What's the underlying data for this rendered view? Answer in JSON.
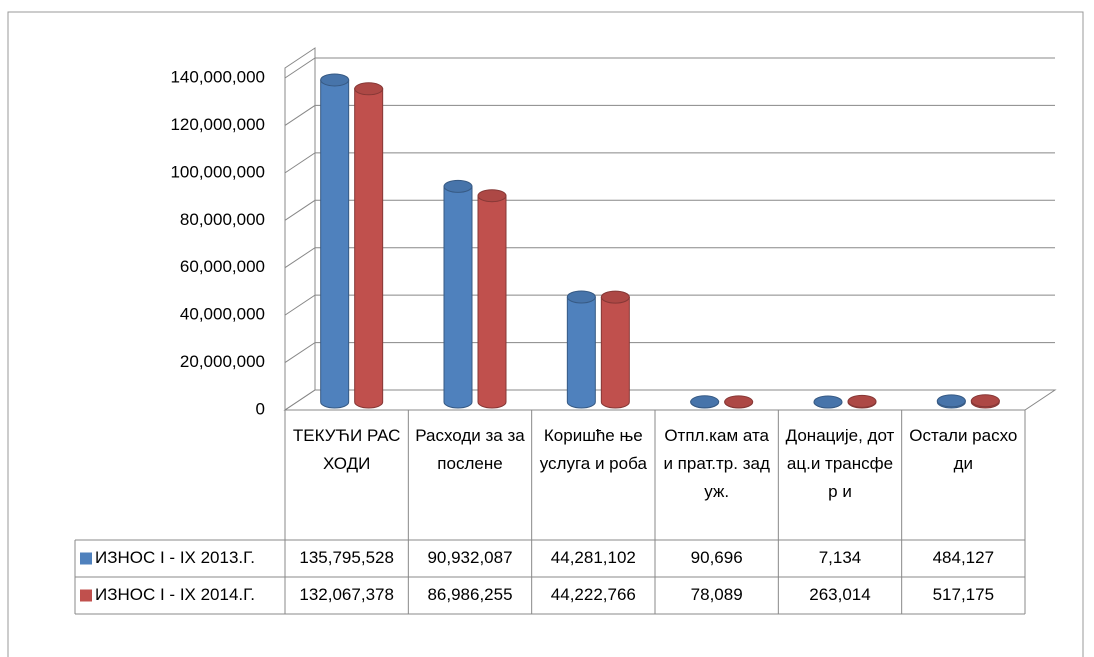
{
  "chart_data": {
    "type": "bar3d",
    "categories": [
      "ТЕКУЋИ РАСХОДИ",
      "Расходи за запослене",
      "Коришће ње услуга и роба",
      "Отпл.кам ата и прат.тр. задуж.",
      "Донације, дотац.и трансфер и",
      "Остали расходи"
    ],
    "series": [
      {
        "name": "ИЗНОС I - IX  2013.Г.",
        "color": "#4f81bd",
        "values": [
          135795528,
          90932087,
          44281102,
          90696,
          7134,
          484127
        ],
        "value_labels": [
          "135,795,528",
          "90,932,087",
          "44,281,102",
          "90,696",
          "7,134",
          "484,127"
        ]
      },
      {
        "name": "ИЗНОС I - IX  2014.Г.",
        "color": "#c0504d",
        "values": [
          132067378,
          86986255,
          44222766,
          78089,
          263014,
          517175
        ],
        "value_labels": [
          "132,067,378",
          "86,986,255",
          "44,222,766",
          "78,089",
          "263,014",
          "517,175"
        ]
      }
    ],
    "ylim": [
      0,
      140000000
    ],
    "yticks": [
      0,
      {
        "value": 20000000,
        "label": "20,000,000"
      },
      {
        "value": 40000000,
        "label": "40,000,000"
      },
      {
        "value": 60000000,
        "label": "60,000,000"
      },
      {
        "value": 80000000,
        "label": "80,000,000"
      },
      {
        "value": 100000000,
        "label": "100,000,000"
      },
      {
        "value": 120000000,
        "label": "120,000,000"
      },
      {
        "value": 140000000,
        "label": "140,000,000"
      }
    ],
    "grid": true
  }
}
